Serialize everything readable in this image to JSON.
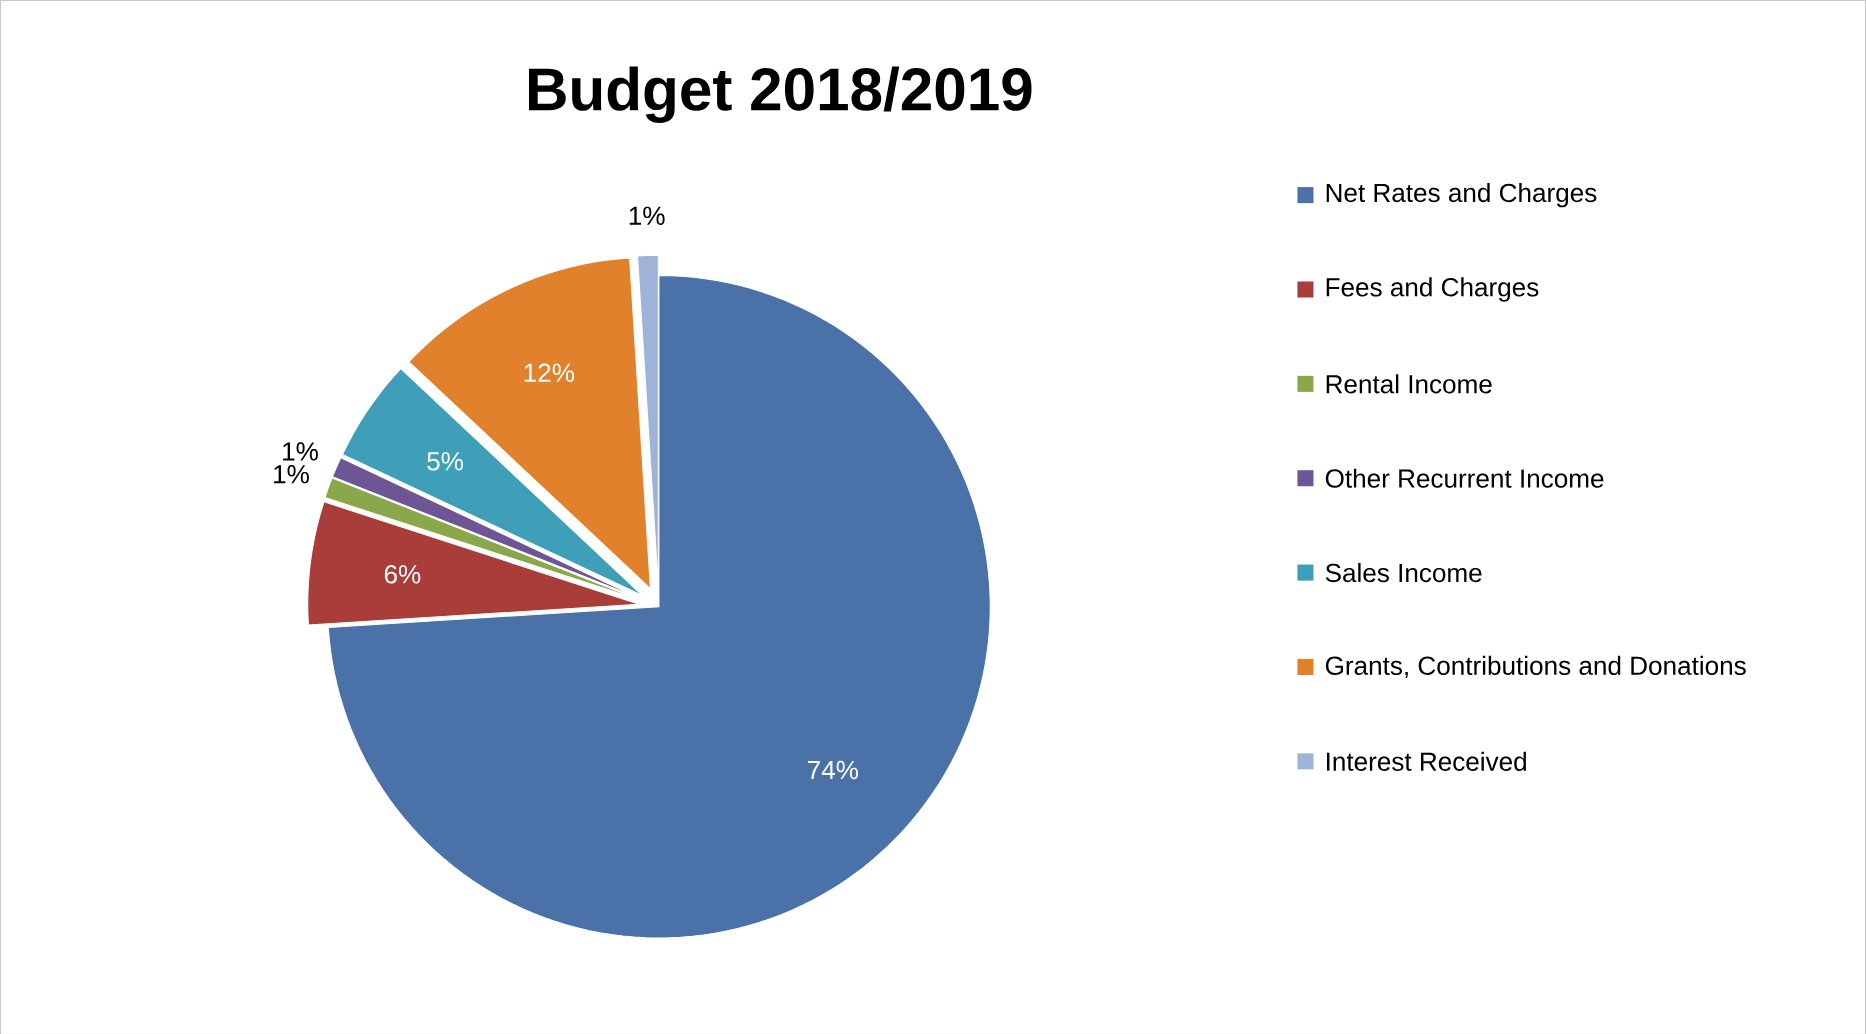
{
  "chart_data": {
    "type": "pie",
    "title": "Budget 2018/2019",
    "categories": [
      "Net Rates and Charges",
      "Fees and Charges",
      "Rental Income",
      "Other Recurrent Income",
      "Sales Income",
      "Grants, Contributions and Donations",
      "Interest Received"
    ],
    "values": [
      74,
      6,
      1,
      1,
      5,
      12,
      1
    ],
    "value_labels": [
      "74%",
      "6%",
      "1%",
      "1%",
      "5%",
      "12%",
      "1%"
    ],
    "colors": [
      "#4a72a8",
      "#a83d3a",
      "#8aa84a",
      "#6e5596",
      "#3f9fb8",
      "#e2812b",
      "#9db4d8"
    ],
    "legend": "right"
  }
}
